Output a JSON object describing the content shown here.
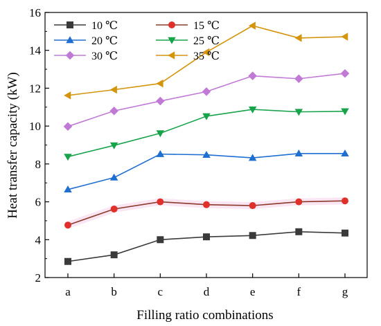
{
  "chart_data": {
    "type": "line",
    "xlabel": "Filling ratio combinations",
    "ylabel": "Heat transfer capacity (kW)",
    "categories": [
      "a",
      "b",
      "c",
      "d",
      "e",
      "f",
      "g"
    ],
    "ylim": [
      2,
      16
    ],
    "yticks": [
      "2",
      "4",
      "6",
      "8",
      "10",
      "12",
      "14",
      "16"
    ],
    "grid": false,
    "legend_position": "top-left",
    "series": [
      {
        "name": "10 ℃",
        "color": "#3a3a3a",
        "marker": "square",
        "values": [
          2.85,
          3.2,
          4.0,
          4.15,
          4.22,
          4.42,
          4.35
        ]
      },
      {
        "name": "15 ℃",
        "color": "#e0302a",
        "line_color": "#8b3a2a",
        "marker": "circle",
        "values": [
          4.77,
          5.62,
          6.0,
          5.85,
          5.8,
          6.0,
          6.05
        ]
      },
      {
        "name": "20 ℃",
        "color": "#1f6fd1",
        "marker": "triangle-up",
        "values": [
          6.65,
          7.28,
          8.52,
          8.48,
          8.32,
          8.55,
          8.55
        ]
      },
      {
        "name": "25 ℃",
        "color": "#16a34a",
        "marker": "triangle-down",
        "values": [
          8.38,
          8.98,
          9.62,
          10.52,
          10.88,
          10.75,
          10.78
        ]
      },
      {
        "name": "30 ℃",
        "color": "#c07ad6",
        "marker": "diamond",
        "values": [
          9.98,
          10.8,
          11.32,
          11.82,
          12.65,
          12.5,
          12.78
        ]
      },
      {
        "name": "35 ℃",
        "color": "#d4940c",
        "marker": "triangle-left",
        "values": [
          11.62,
          11.92,
          12.25,
          13.9,
          15.3,
          14.65,
          14.72
        ]
      }
    ]
  }
}
